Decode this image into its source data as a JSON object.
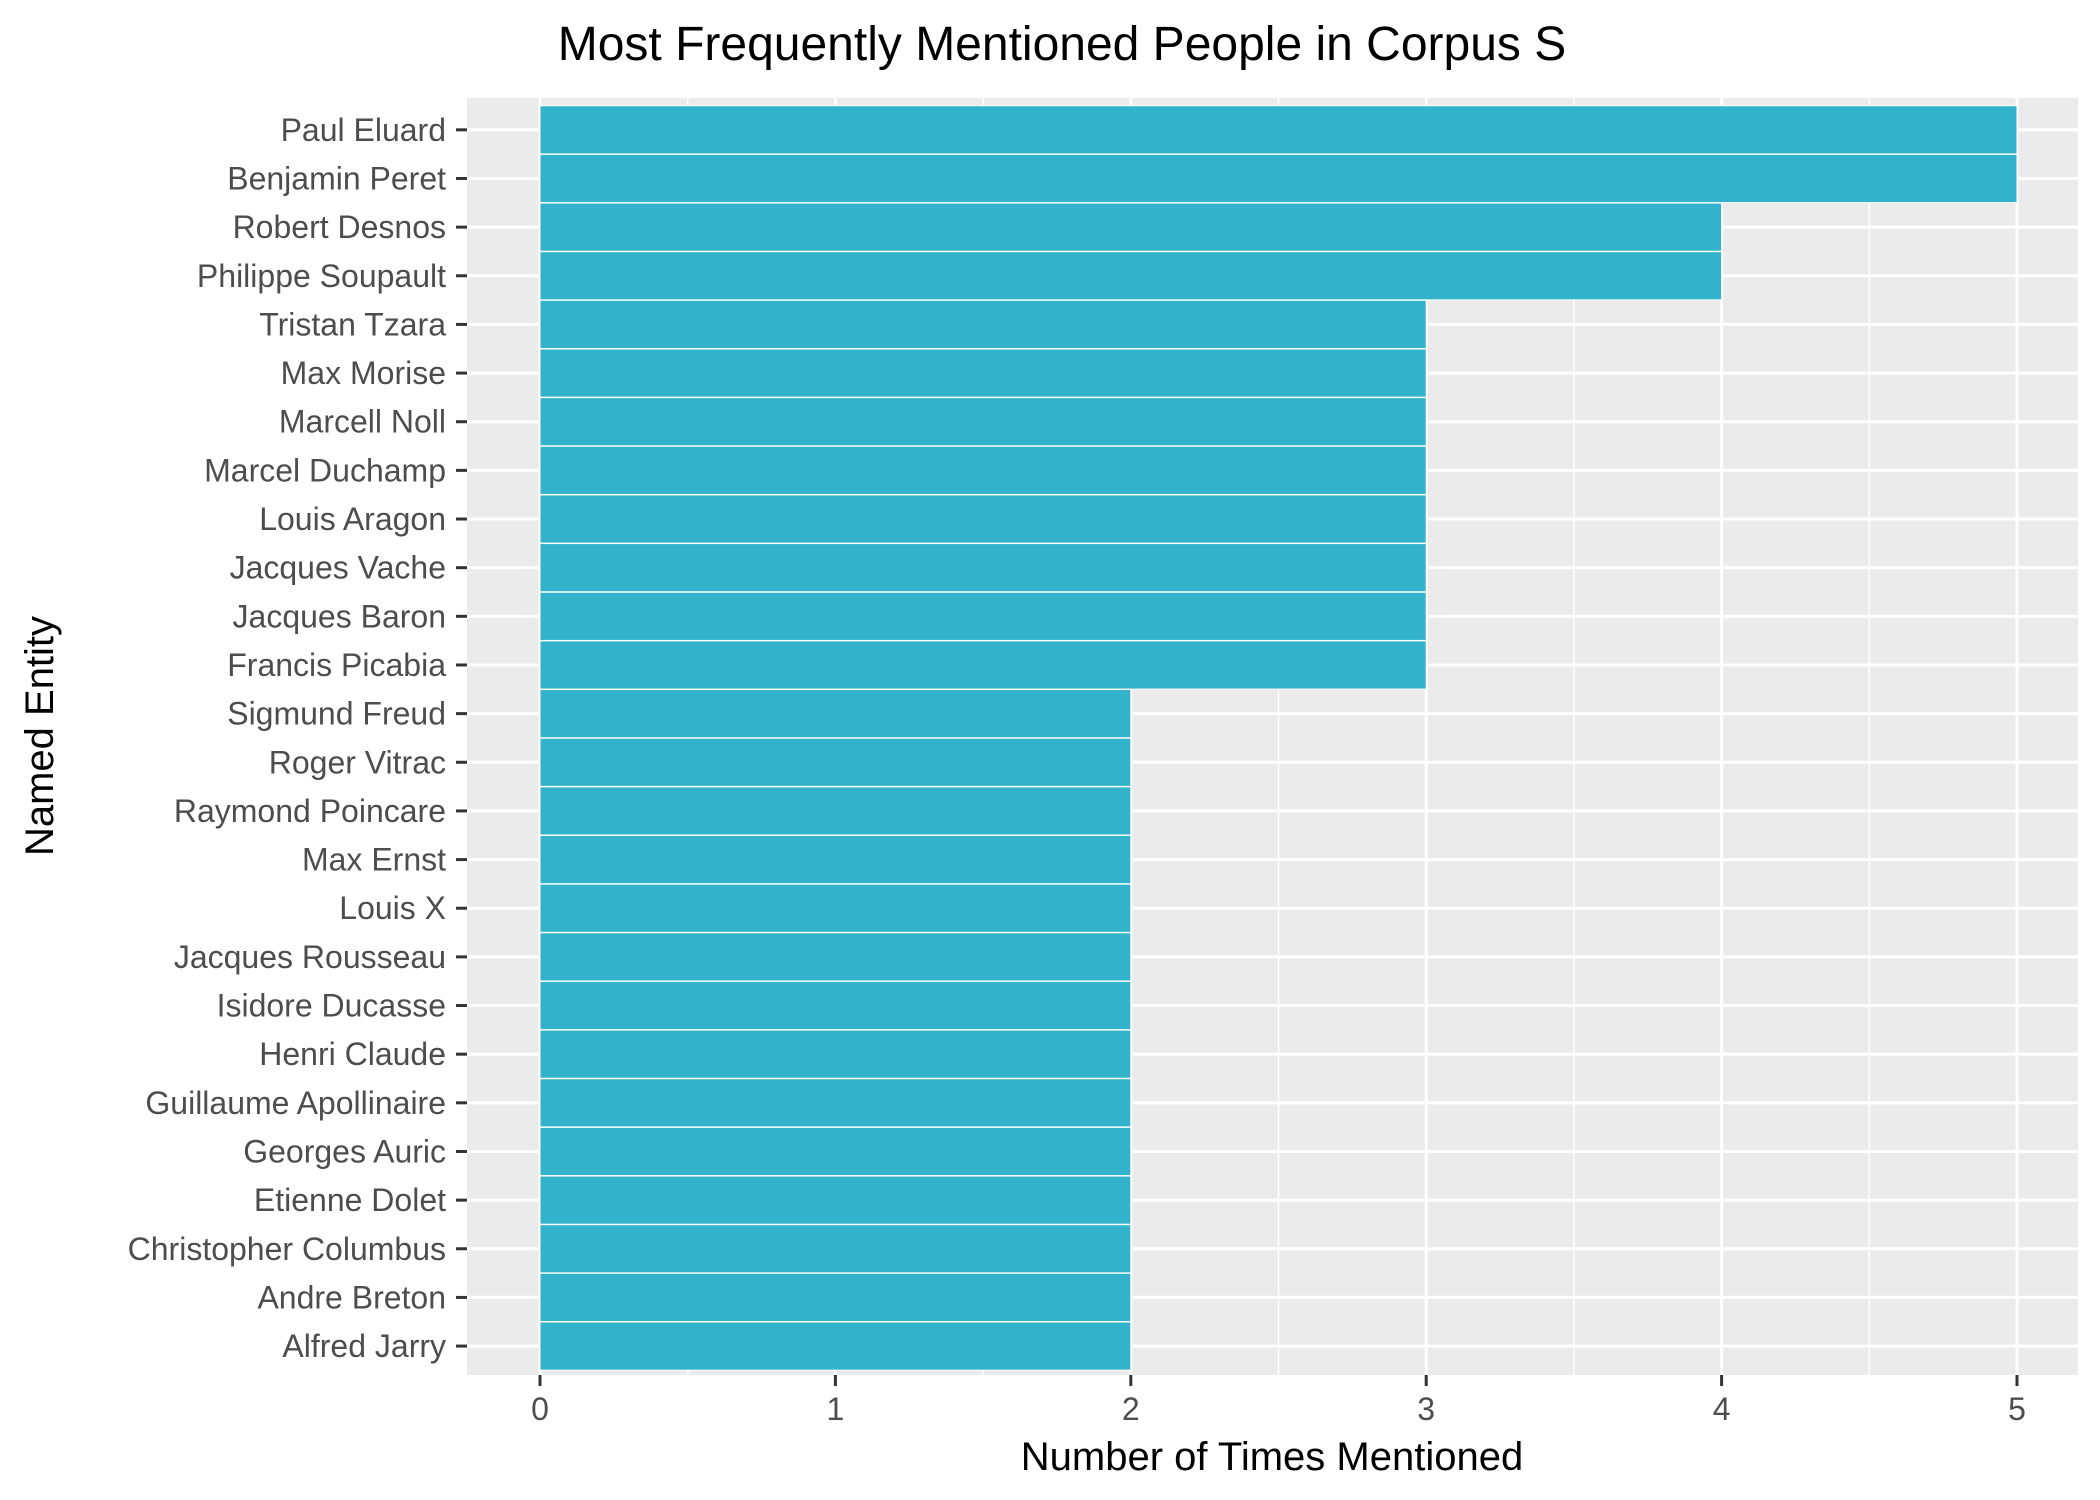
{
  "chart_data": {
    "type": "bar",
    "orientation": "horizontal",
    "title": "Most Frequently Mentioned People in Corpus S",
    "xlabel": "Number of Times Mentioned",
    "ylabel": "Named Entity",
    "xlim": [
      0,
      5
    ],
    "x_ticks": [
      0,
      1,
      2,
      3,
      4,
      5
    ],
    "grid": true,
    "bar_color": "#33B2CC",
    "panel_background": "#EBEBEB",
    "categories": [
      "Paul Eluard",
      "Benjamin Peret",
      "Robert Desnos",
      "Philippe Soupault",
      "Tristan Tzara",
      "Max Morise",
      "Marcell Noll",
      "Marcel Duchamp",
      "Louis Aragon",
      "Jacques Vache",
      "Jacques Baron",
      "Francis Picabia",
      "Sigmund Freud",
      "Roger Vitrac",
      "Raymond Poincare",
      "Max Ernst",
      "Louis X",
      "Jacques Rousseau",
      "Isidore Ducasse",
      "Henri Claude",
      "Guillaume Apollinaire",
      "Georges Auric",
      "Etienne Dolet",
      "Christopher Columbus",
      "Andre Breton",
      "Alfred Jarry"
    ],
    "values": [
      5,
      5,
      4,
      4,
      3,
      3,
      3,
      3,
      3,
      3,
      3,
      3,
      2,
      2,
      2,
      2,
      2,
      2,
      2,
      2,
      2,
      2,
      2,
      2,
      2,
      2
    ]
  }
}
